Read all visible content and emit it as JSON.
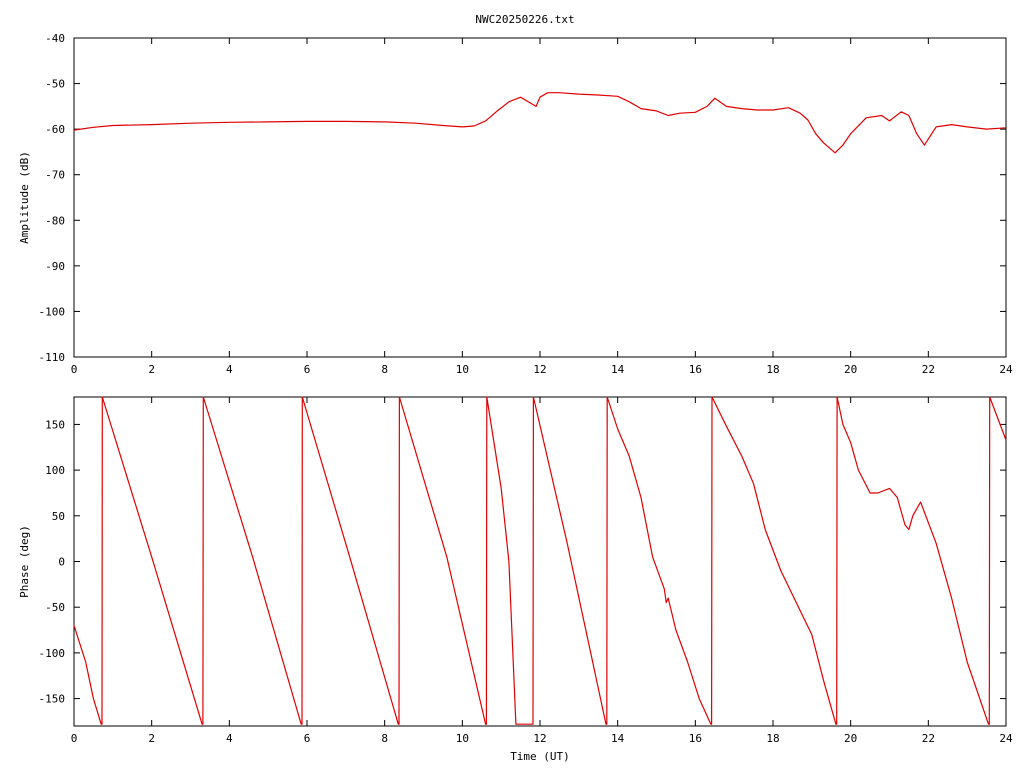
{
  "title": "NWC20250226.txt",
  "colors": {
    "trace": "#e00000",
    "axes": "#000000",
    "background": "#ffffff"
  },
  "chart_data": [
    {
      "type": "line",
      "panel": "top",
      "title": "NWC20250226.txt",
      "xlabel": "",
      "ylabel": "Amplitude (dB)",
      "xlim": [
        0,
        24
      ],
      "ylim": [
        -110,
        -40
      ],
      "x_ticks": [
        "0",
        "2",
        "4",
        "6",
        "8",
        "10",
        "12",
        "14",
        "16",
        "18",
        "20",
        "22",
        "24"
      ],
      "y_ticks": [
        "-40",
        "-50",
        "-60",
        "-70",
        "-80",
        "-90",
        "-100",
        "-110"
      ],
      "grid": false,
      "series": [
        {
          "x": [
            0,
            0.5,
            1,
            2,
            3,
            4,
            5,
            6,
            7,
            8,
            8.8,
            9.5,
            10,
            10.3,
            10.6,
            10.9,
            11.2,
            11.5,
            11.8,
            11.9,
            12.0,
            12.2,
            12.5,
            13,
            13.5,
            14,
            14.3,
            14.6,
            15,
            15.3,
            15.6,
            16,
            16.3,
            16.5,
            16.8,
            17.2,
            17.6,
            18,
            18.4,
            18.7,
            18.9,
            19.1,
            19.3,
            19.6,
            19.8,
            20.0,
            20.4,
            20.8,
            21.0,
            21.3,
            21.5,
            21.7,
            21.9,
            22.2,
            22.6,
            23,
            23.5,
            24
          ],
          "values": [
            -60.2,
            -59.6,
            -59.2,
            -59.0,
            -58.7,
            -58.5,
            -58.4,
            -58.3,
            -58.3,
            -58.4,
            -58.7,
            -59.2,
            -59.5,
            -59.3,
            -58.2,
            -56.0,
            -54.0,
            -53.0,
            -54.5,
            -55.0,
            -53.0,
            -52.0,
            -52.0,
            -52.3,
            -52.5,
            -52.8,
            -54.0,
            -55.5,
            -56.0,
            -57.0,
            -56.5,
            -56.3,
            -55.0,
            -53.2,
            -55.0,
            -55.5,
            -55.8,
            -55.8,
            -55.3,
            -56.5,
            -58.0,
            -61.0,
            -63.0,
            -65.2,
            -63.5,
            -61.0,
            -57.5,
            -57.0,
            -58.2,
            -56.2,
            -57.0,
            -61.0,
            -63.5,
            -59.5,
            -59.0,
            -59.5,
            -60.0,
            -59.7
          ]
        }
      ]
    },
    {
      "type": "line",
      "panel": "bottom",
      "title": "",
      "xlabel": "Time (UT)",
      "ylabel": "Phase (deg)",
      "xlim": [
        0,
        24
      ],
      "ylim": [
        -180,
        180
      ],
      "x_ticks": [
        "0",
        "2",
        "4",
        "6",
        "8",
        "10",
        "12",
        "14",
        "16",
        "18",
        "20",
        "22",
        "24"
      ],
      "y_ticks": [
        "150",
        "100",
        "50",
        "0",
        "-50",
        "-100",
        "-150"
      ],
      "grid": false,
      "series": [
        {
          "x": [
            0,
            0.3,
            0.5,
            0.7,
            0.72,
            0.73,
            2.0,
            3.3,
            3.32,
            3.33,
            4.6,
            5.85,
            5.87,
            5.88,
            7.1,
            8.35,
            8.37,
            8.38,
            9.6,
            10.6,
            10.62,
            10.63,
            11.0,
            11.2,
            11.38,
            11.8,
            11.82,
            11.83,
            12.7,
            13.7,
            13.72,
            13.73,
            14.0,
            14.3,
            14.6,
            14.9,
            15.2,
            15.25,
            15.3,
            15.5,
            15.8,
            16.1,
            16.4,
            16.42,
            16.43,
            16.8,
            17.2,
            17.5,
            17.8,
            18.2,
            18.6,
            19.0,
            19.3,
            19.62,
            19.64,
            19.65,
            19.8,
            20.0,
            20.2,
            20.5,
            20.7,
            21.0,
            21.2,
            21.4,
            21.5,
            21.6,
            21.8,
            22.2,
            22.6,
            23.0,
            23.55,
            23.57,
            23.58,
            24
          ],
          "values": [
            -70,
            -110,
            -150,
            -178,
            -178,
            180,
            5,
            -178,
            -178,
            180,
            5,
            -178,
            -178,
            180,
            5,
            -178,
            -178,
            180,
            5,
            -178,
            -178,
            180,
            80,
            0,
            -178,
            -178,
            -178,
            180,
            20,
            -178,
            -178,
            180,
            145,
            115,
            70,
            5,
            -30,
            -45,
            -40,
            -75,
            -110,
            -150,
            -178,
            -178,
            180,
            148,
            115,
            85,
            35,
            -10,
            -45,
            -80,
            -130,
            -178,
            -178,
            180,
            150,
            130,
            100,
            75,
            75,
            80,
            70,
            40,
            35,
            50,
            65,
            20,
            -40,
            -110,
            -178,
            -178,
            180,
            133
          ]
        }
      ]
    }
  ]
}
